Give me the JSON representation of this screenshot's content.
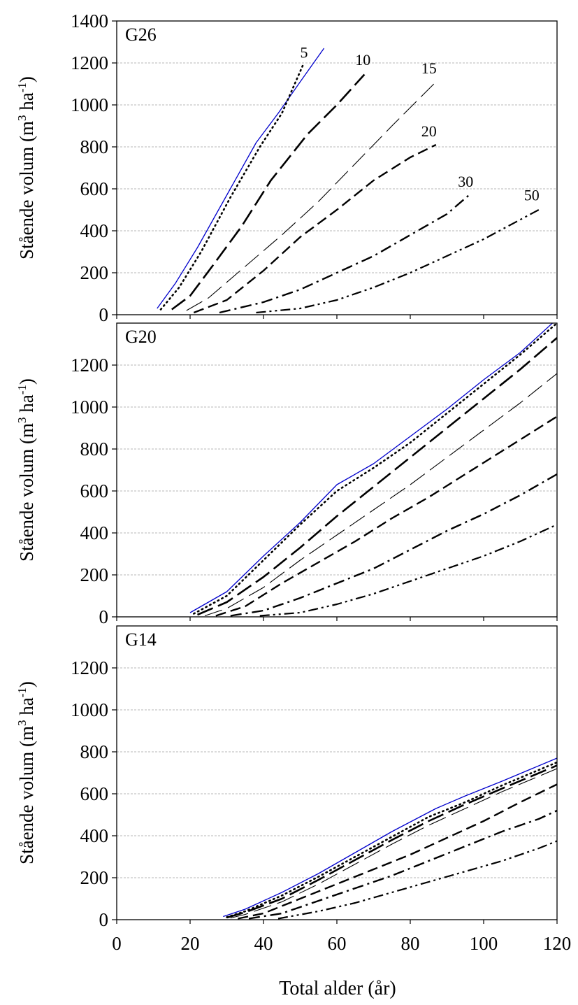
{
  "figure": {
    "xlabel": "Total alder (år)",
    "ylabel": {
      "main": "Stående volum (m",
      "sup1": "3",
      "mid": " ha",
      "sup2": "-1",
      "end": ")"
    }
  },
  "colors": {
    "series_5": "#0000cc",
    "default": "#000000",
    "grid": "#a0a0a0"
  },
  "chart_data": [
    {
      "type": "line",
      "panel_title": "G26",
      "xlim": [
        0,
        120
      ],
      "ylim": [
        0,
        1400
      ],
      "xticks": [],
      "yticks": [
        0,
        200,
        400,
        600,
        800,
        1000,
        1200,
        1400
      ],
      "grid": "horizontal",
      "series": [
        {
          "name": "5",
          "style": "solid-blue",
          "x": [
            11,
            16,
            22,
            30,
            38,
            44,
            50,
            56.5
          ],
          "y": [
            30,
            150,
            320,
            570,
            820,
            960,
            1110,
            1270
          ]
        },
        {
          "name": "",
          "style": "dotted",
          "x": [
            12,
            17,
            23,
            31,
            39,
            45,
            51
          ],
          "y": [
            25,
            130,
            300,
            560,
            800,
            960,
            1200
          ]
        },
        {
          "name": "10",
          "style": "long-dash",
          "x": [
            15,
            20,
            26,
            34,
            42,
            52,
            60,
            67.5
          ],
          "y": [
            25,
            90,
            230,
            420,
            640,
            860,
            1000,
            1145
          ]
        },
        {
          "name": "15",
          "style": "thin-dash",
          "x": [
            19,
            25,
            35,
            45,
            55,
            65,
            75,
            87
          ],
          "y": [
            20,
            80,
            230,
            380,
            540,
            720,
            900,
            1110
          ]
        },
        {
          "name": "20",
          "style": "medium-dash",
          "x": [
            21,
            30,
            40,
            50,
            60,
            70,
            80,
            87
          ],
          "y": [
            10,
            70,
            210,
            370,
            500,
            640,
            750,
            810
          ]
        },
        {
          "name": "30",
          "style": "dash-dot",
          "x": [
            28,
            40,
            50,
            60,
            70,
            80,
            90,
            96
          ],
          "y": [
            10,
            60,
            120,
            200,
            280,
            380,
            480,
            570
          ]
        },
        {
          "name": "50",
          "style": "dash-dot-dot",
          "x": [
            38,
            50,
            60,
            70,
            80,
            90,
            100,
            115
          ],
          "y": [
            10,
            30,
            70,
            130,
            200,
            280,
            360,
            500
          ]
        }
      ],
      "labels": [
        {
          "text": "5",
          "x": 50,
          "y": 1225
        },
        {
          "text": "10",
          "x": 65,
          "y": 1190
        },
        {
          "text": "15",
          "x": 83,
          "y": 1150
        },
        {
          "text": "20",
          "x": 83,
          "y": 850
        },
        {
          "text": "30",
          "x": 93,
          "y": 610
        },
        {
          "text": "50",
          "x": 111,
          "y": 545
        }
      ]
    },
    {
      "type": "line",
      "panel_title": "G20",
      "xlim": [
        0,
        120
      ],
      "ylim": [
        0,
        1400
      ],
      "xticks": [],
      "yticks": [
        0,
        200,
        400,
        600,
        800,
        1000,
        1200
      ],
      "grid": "horizontal",
      "series": [
        {
          "name": "5",
          "style": "solid-blue",
          "x": [
            20,
            30,
            40,
            50,
            60,
            70,
            80,
            90,
            100,
            110,
            120
          ],
          "y": [
            20,
            120,
            290,
            450,
            630,
            730,
            860,
            990,
            1130,
            1260,
            1420
          ]
        },
        {
          "name": "",
          "style": "dotted",
          "x": [
            21,
            30,
            40,
            50,
            60,
            70,
            80,
            90,
            100,
            110,
            120
          ],
          "y": [
            15,
            100,
            270,
            440,
            600,
            710,
            830,
            970,
            1110,
            1250,
            1400
          ]
        },
        {
          "name": "10",
          "style": "long-dash",
          "x": [
            22,
            30,
            40,
            50,
            60,
            70,
            80,
            90,
            100,
            110,
            120
          ],
          "y": [
            10,
            70,
            190,
            330,
            480,
            620,
            760,
            900,
            1040,
            1180,
            1330
          ]
        },
        {
          "name": "15",
          "style": "thin-dash",
          "x": [
            24,
            30,
            40,
            50,
            60,
            70,
            80,
            90,
            100,
            110,
            120
          ],
          "y": [
            5,
            40,
            140,
            270,
            390,
            510,
            630,
            760,
            890,
            1020,
            1160
          ]
        },
        {
          "name": "20",
          "style": "medium-dash",
          "x": [
            27,
            35,
            45,
            55,
            65,
            75,
            85,
            95,
            105,
            115,
            120
          ],
          "y": [
            5,
            50,
            160,
            260,
            360,
            470,
            570,
            680,
            790,
            900,
            955
          ]
        },
        {
          "name": "30",
          "style": "dash-dot",
          "x": [
            31,
            40,
            50,
            60,
            70,
            80,
            90,
            100,
            110,
            120
          ],
          "y": [
            5,
            30,
            90,
            160,
            230,
            320,
            410,
            490,
            580,
            680
          ]
        },
        {
          "name": "50",
          "style": "dash-dot-dot",
          "x": [
            39,
            50,
            60,
            70,
            80,
            90,
            100,
            110,
            120
          ],
          "y": [
            5,
            20,
            60,
            110,
            170,
            230,
            290,
            360,
            440
          ]
        }
      ],
      "labels": []
    },
    {
      "type": "line",
      "panel_title": "G14",
      "xlim": [
        0,
        120
      ],
      "ylim": [
        0,
        1400
      ],
      "xticks": [
        0,
        20,
        40,
        60,
        80,
        100,
        120
      ],
      "yticks": [
        0,
        200,
        400,
        600,
        800,
        1000,
        1200
      ],
      "grid": "horizontal",
      "series": [
        {
          "name": "5",
          "style": "solid-blue",
          "x": [
            29,
            35,
            45,
            55,
            65,
            75,
            87,
            95,
            105,
            120
          ],
          "y": [
            15,
            50,
            130,
            220,
            320,
            420,
            530,
            590,
            660,
            770
          ]
        },
        {
          "name": "",
          "style": "dotted",
          "x": [
            30,
            35,
            45,
            55,
            65,
            75,
            85,
            95,
            105,
            120
          ],
          "y": [
            12,
            40,
            115,
            205,
            300,
            395,
            490,
            560,
            640,
            750
          ]
        },
        {
          "name": "10",
          "style": "long-dash",
          "x": [
            30,
            35,
            45,
            55,
            65,
            75,
            85,
            95,
            105,
            120
          ],
          "y": [
            10,
            35,
            100,
            190,
            285,
            380,
            470,
            550,
            625,
            735
          ]
        },
        {
          "name": "15",
          "style": "thin-dash",
          "x": [
            31,
            35,
            45,
            55,
            65,
            75,
            85,
            95,
            105,
            120
          ],
          "y": [
            8,
            25,
            85,
            170,
            265,
            360,
            450,
            530,
            610,
            720
          ]
        },
        {
          "name": "20",
          "style": "medium-dash",
          "x": [
            33,
            40,
            50,
            60,
            70,
            80,
            90,
            100,
            110,
            120
          ],
          "y": [
            5,
            30,
            100,
            170,
            240,
            310,
            390,
            470,
            560,
            645
          ]
        },
        {
          "name": "30",
          "style": "dash-dot",
          "x": [
            36,
            45,
            55,
            65,
            75,
            85,
            95,
            105,
            115,
            120
          ],
          "y": [
            5,
            30,
            90,
            150,
            210,
            280,
            350,
            420,
            480,
            520
          ]
        },
        {
          "name": "50",
          "style": "dash-dot-dot",
          "x": [
            44,
            55,
            65,
            75,
            85,
            95,
            105,
            115,
            120
          ],
          "y": [
            5,
            40,
            80,
            130,
            180,
            230,
            280,
            340,
            375
          ]
        }
      ],
      "labels": []
    }
  ]
}
